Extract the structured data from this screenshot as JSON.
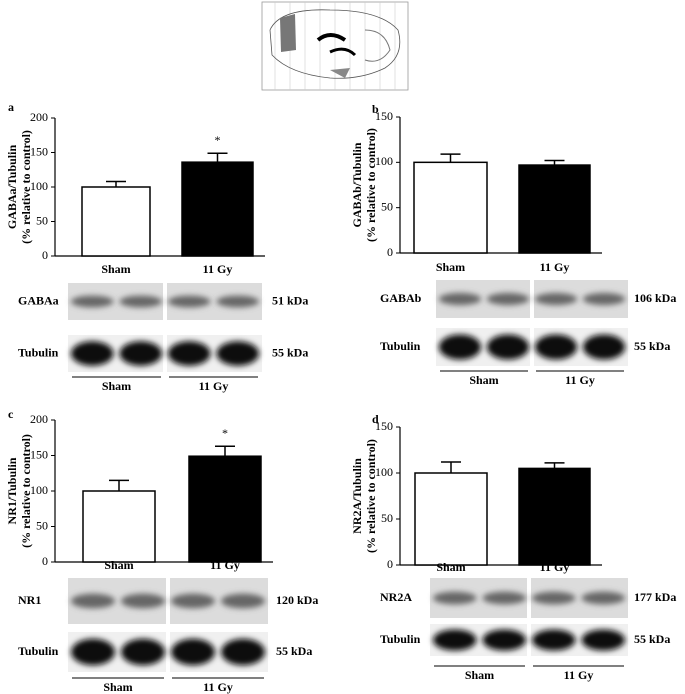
{
  "chart_data": [
    {
      "type": "bar",
      "panel": "a",
      "ylabel": [
        "GABAa/Tubulin",
        "(% relative to control)"
      ],
      "categories": [
        "Sham",
        "11 Gy"
      ],
      "values": [
        100,
        136
      ],
      "errors": [
        8,
        13
      ],
      "colors": [
        "#ffffff",
        "#000000"
      ],
      "ylim": [
        0,
        200
      ],
      "yticks": [
        0,
        50,
        100,
        150,
        200
      ],
      "annotation": "*",
      "blot": {
        "rows": [
          {
            "label": "GABAa",
            "kda": "51 kDa"
          },
          {
            "label": "Tubulin",
            "kda": "55 kDa"
          }
        ],
        "groups": [
          "Sham",
          "11 Gy"
        ]
      }
    },
    {
      "type": "bar",
      "panel": "b",
      "ylabel": [
        "GABAb/Tubulin",
        "(% relative to control)"
      ],
      "categories": [
        "Sham",
        "11 Gy"
      ],
      "values": [
        100,
        97
      ],
      "errors": [
        9,
        5
      ],
      "colors": [
        "#ffffff",
        "#000000"
      ],
      "ylim": [
        0,
        150
      ],
      "yticks": [
        0,
        50,
        100,
        150
      ],
      "blot": {
        "rows": [
          {
            "label": "GABAb",
            "kda": "106 kDa"
          },
          {
            "label": "Tubulin",
            "kda": "55 kDa"
          }
        ],
        "groups": [
          "Sham",
          "11 Gy"
        ]
      }
    },
    {
      "type": "bar",
      "panel": "c",
      "ylabel": [
        "NR1/Tubulin",
        "(% relative to control)"
      ],
      "categories": [
        "Sham",
        "11 Gy"
      ],
      "values": [
        100,
        149
      ],
      "errors": [
        15,
        14
      ],
      "colors": [
        "#ffffff",
        "#000000"
      ],
      "ylim": [
        0,
        200
      ],
      "yticks": [
        0,
        50,
        100,
        150,
        200
      ],
      "annotation": "*",
      "blot": {
        "rows": [
          {
            "label": "NR1",
            "kda": "120 kDa"
          },
          {
            "label": "Tubulin",
            "kda": "55 kDa"
          }
        ],
        "groups": [
          "Sham",
          "11 Gy"
        ]
      }
    },
    {
      "type": "bar",
      "panel": "d",
      "ylabel": [
        "NR2A/Tubulin",
        "(% relative to control)"
      ],
      "categories": [
        "Sham",
        "11 Gy"
      ],
      "values": [
        100,
        105
      ],
      "errors": [
        12,
        6
      ],
      "colors": [
        "#ffffff",
        "#000000"
      ],
      "ylim": [
        0,
        150
      ],
      "yticks": [
        0,
        50,
        100,
        150
      ],
      "blot": {
        "rows": [
          {
            "label": "NR2A",
            "kda": "177 kDa"
          },
          {
            "label": "Tubulin",
            "kda": "55 kDa"
          }
        ],
        "groups": [
          "Sham",
          "11 Gy"
        ]
      }
    }
  ]
}
